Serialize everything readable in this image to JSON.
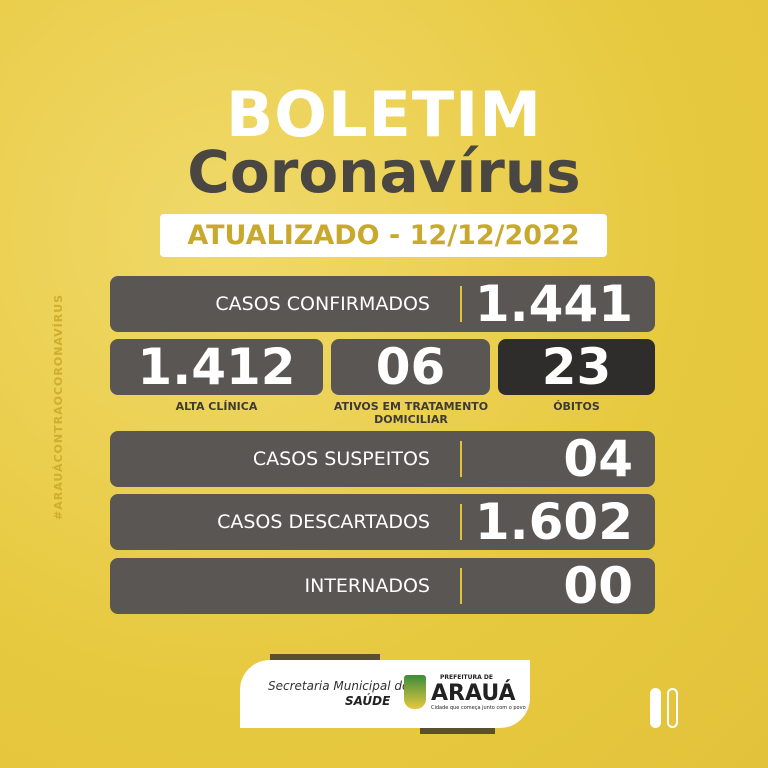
{
  "title": "BOLETIM",
  "subtitle": "Coronavírus",
  "updated": "ATUALIZADO - 12/12/2022",
  "hashtag": "#ARAUÁCONTRAOCORONAVÍRUS",
  "confirmed": {
    "label": "CASOS CONFIRMADOS",
    "value": "1.441"
  },
  "boxes": [
    {
      "label": "ALTA CLÍNICA",
      "value": "1.412",
      "color": "#5a5653"
    },
    {
      "label": "ATIVOS EM TRATAMENTO DOMICILIAR",
      "value": "06",
      "color": "#5a5653"
    },
    {
      "label": "ÓBITOS",
      "value": "23",
      "color": "#2f2d2b"
    }
  ],
  "rows": [
    {
      "label": "CASOS SUSPEITOS",
      "value": "04"
    },
    {
      "label": "CASOS DESCARTADOS",
      "value": "1.602"
    },
    {
      "label": "INTERNADOS",
      "value": "00"
    }
  ],
  "footer": {
    "secretaria": "Secretaria Municipal de",
    "saude": "SAÚDE",
    "prefeitura": "PREFEITURA DE",
    "city": "ARAUÁ",
    "slogan": "Cidade que começa junto com o povo"
  },
  "colors": {
    "background": "#e7c93f",
    "panel": "#5a5653",
    "dark_panel": "#2f2d2b",
    "badge_text": "#c8a92e"
  }
}
